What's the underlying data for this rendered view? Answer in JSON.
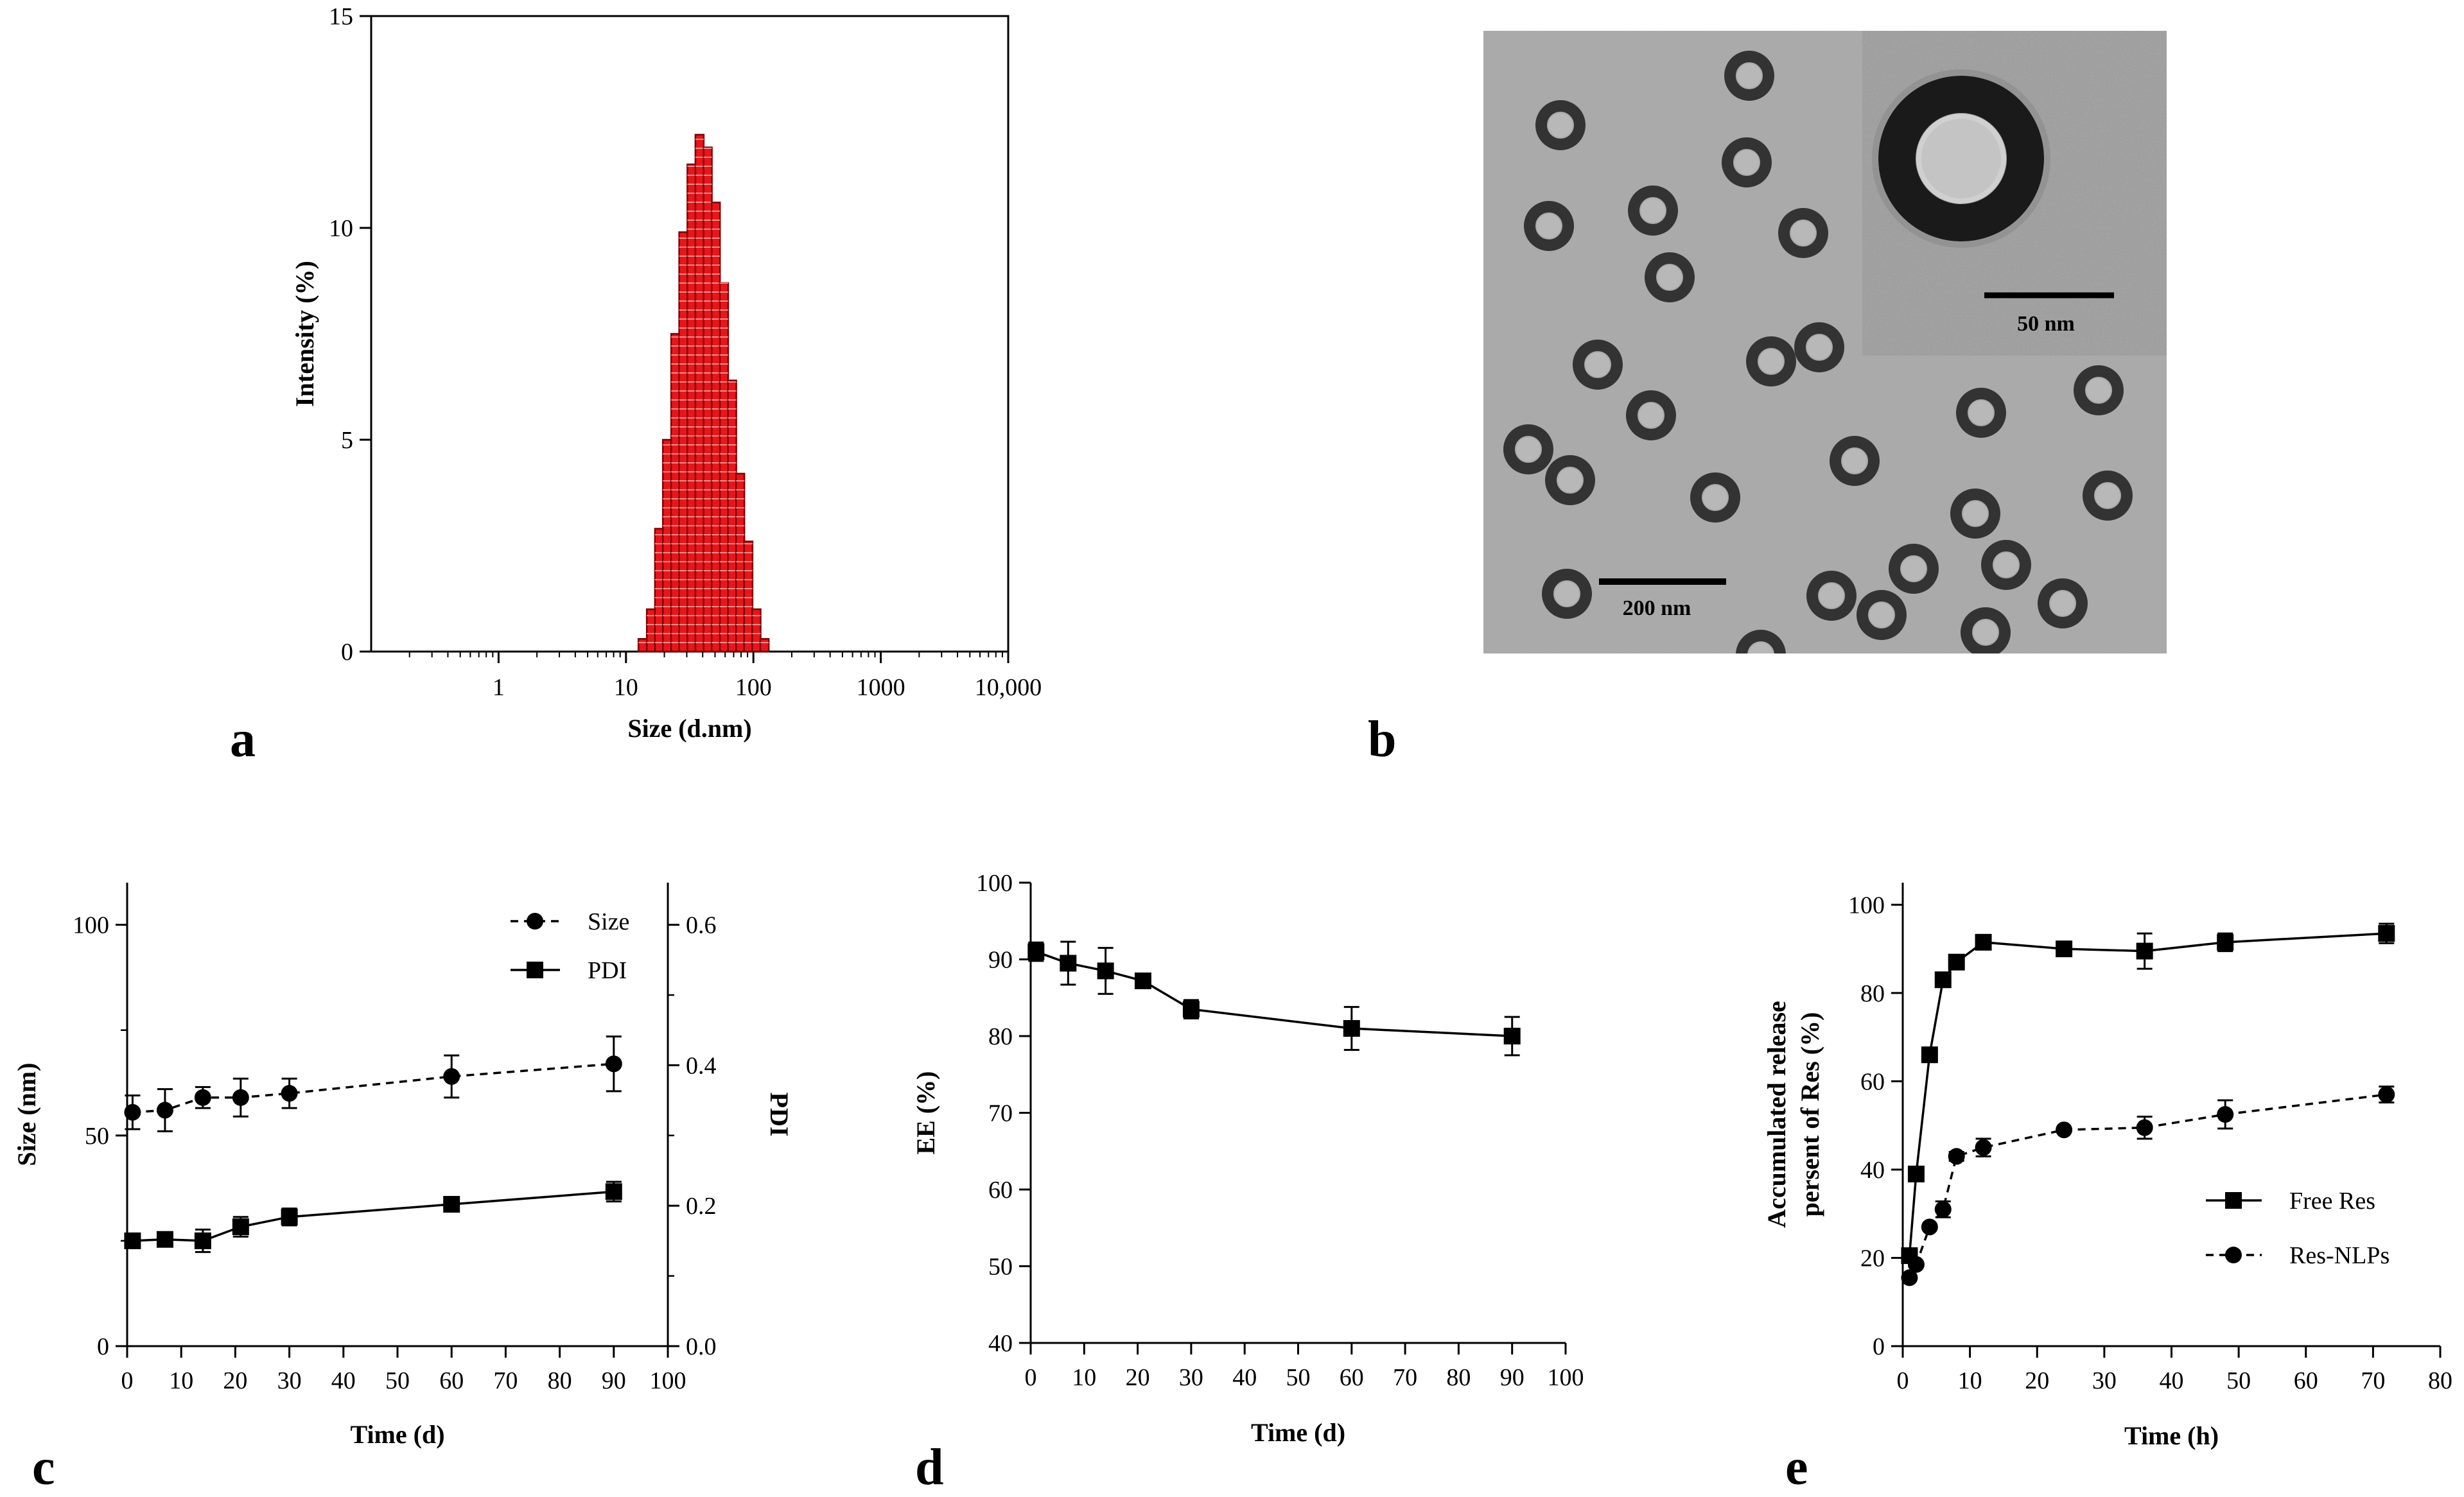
{
  "panels": {
    "a": "a",
    "b": "b",
    "c": "c",
    "d": "d",
    "e": "e"
  },
  "tem": {
    "scale_main": "200 nm",
    "scale_inset": "50 nm",
    "background_color": "#a9a9a9",
    "ring_color": "#333333"
  },
  "colors": {
    "bar_fill": "#e8161b",
    "bar_stroke": "#7a0000",
    "axis": "#000000"
  },
  "chart_data": [
    {
      "id": "a",
      "type": "bar",
      "xscale": "log",
      "xlim": [
        0.1,
        10000
      ],
      "ylim": [
        0,
        15
      ],
      "xticks": [
        1,
        10,
        100,
        1000,
        10000
      ],
      "xtick_labels": [
        "1",
        "10",
        "100",
        "1000",
        "10,000"
      ],
      "yticks": [
        0,
        5,
        10,
        15
      ],
      "ytick_labels": [
        "0",
        "5",
        "10",
        "15"
      ],
      "xlabel": "Size (d.nm)",
      "ylabel": "Intensity (%)",
      "x": [
        13.5,
        15.7,
        18.2,
        21.0,
        24.4,
        28.2,
        32.7,
        37.8,
        43.8,
        50.7,
        58.8,
        68.1,
        78.8,
        91.3,
        105.7,
        122.4
      ],
      "values": [
        0.3,
        1.0,
        2.9,
        5.0,
        7.5,
        9.9,
        11.5,
        12.2,
        11.9,
        10.6,
        8.7,
        6.4,
        4.2,
        2.6,
        1.0,
        0.3
      ]
    },
    {
      "id": "c",
      "type": "line",
      "xlim": [
        0,
        100
      ],
      "xticks": [
        0,
        10,
        20,
        30,
        40,
        50,
        60,
        70,
        80,
        90,
        100
      ],
      "xtick_labels": [
        "0",
        "10",
        "20",
        "30",
        "40",
        "50",
        "60",
        "70",
        "80",
        "90",
        "100"
      ],
      "xlabel": "Time (d)",
      "ylabel": "Size (nm)",
      "ylim": [
        0,
        110
      ],
      "yticks": [
        0,
        50,
        100
      ],
      "ytick_labels": [
        "0",
        "50",
        "100"
      ],
      "y2label": "PDI",
      "y2lim": [
        0,
        0.66
      ],
      "y2ticks": [
        0.0,
        0.2,
        0.4,
        0.6
      ],
      "y2tick_labels": [
        "0.0",
        "0.2",
        "0.4",
        "0.6"
      ],
      "legend": "top-right",
      "series": [
        {
          "name": "Size",
          "axis": "left",
          "marker": "circle",
          "dash": true,
          "x": [
            1,
            7,
            14,
            21,
            30,
            60,
            90
          ],
          "y": [
            55.5,
            56,
            59,
            59,
            60,
            64,
            67
          ],
          "err": [
            4,
            5,
            2.5,
            4.5,
            3.5,
            5,
            6.5
          ]
        },
        {
          "name": "PDI",
          "axis": "right",
          "marker": "square",
          "dash": false,
          "x": [
            1,
            7,
            14,
            21,
            30,
            60,
            90
          ],
          "y": [
            0.15,
            0.152,
            0.15,
            0.17,
            0.184,
            0.202,
            0.22
          ],
          "err": [
            0.006,
            0.007,
            0.016,
            0.014,
            0.012,
            0.01,
            0.014
          ]
        }
      ]
    },
    {
      "id": "d",
      "type": "line",
      "xlim": [
        0,
        100
      ],
      "xticks": [
        0,
        10,
        20,
        30,
        40,
        50,
        60,
        70,
        80,
        90,
        100
      ],
      "xtick_labels": [
        "0",
        "10",
        "20",
        "30",
        "40",
        "50",
        "60",
        "70",
        "80",
        "90",
        "100"
      ],
      "xlabel": "Time (d)",
      "ylabel": "EE (%)",
      "ylim": [
        40,
        100
      ],
      "yticks": [
        40,
        50,
        60,
        70,
        80,
        90,
        100
      ],
      "ytick_labels": [
        "40",
        "50",
        "60",
        "70",
        "80",
        "90",
        "100"
      ],
      "series": [
        {
          "marker": "square",
          "dash": false,
          "x": [
            1,
            7,
            14,
            21,
            30,
            60,
            90
          ],
          "y": [
            91,
            89.5,
            88.5,
            87.2,
            83.5,
            81,
            80
          ],
          "err": [
            1.2,
            2.8,
            3,
            0.8,
            1.2,
            2.8,
            2.5
          ]
        }
      ]
    },
    {
      "id": "e",
      "type": "line",
      "xlim": [
        0,
        80
      ],
      "xticks": [
        0,
        10,
        20,
        30,
        40,
        50,
        60,
        70,
        80
      ],
      "xtick_labels": [
        "0",
        "10",
        "20",
        "30",
        "40",
        "50",
        "60",
        "70",
        "80"
      ],
      "xlabel": "Time (h)",
      "ylabel": "Accumulated release",
      "ylabel2": "persent of Res (%)",
      "ylim": [
        0,
        105
      ],
      "yticks": [
        0,
        20,
        40,
        60,
        80,
        100
      ],
      "ytick_labels": [
        "0",
        "20",
        "40",
        "60",
        "80",
        "100"
      ],
      "legend": "bottom-right",
      "series": [
        {
          "name": "Free Res",
          "marker": "square",
          "dash": false,
          "x": [
            1,
            2,
            4,
            6,
            8,
            12,
            24,
            36,
            48,
            72
          ],
          "y": [
            20.5,
            39,
            66,
            83,
            87,
            91.5,
            90,
            89.5,
            91.5,
            93.5
          ],
          "err": [
            1,
            1,
            1,
            1,
            1,
            1,
            1,
            4,
            2,
            2.2
          ]
        },
        {
          "name": "Res-NLPs",
          "marker": "circle",
          "dash": true,
          "x": [
            1,
            2,
            4,
            6,
            8,
            12,
            24,
            36,
            48,
            72
          ],
          "y": [
            15.5,
            18.5,
            27,
            31,
            43,
            45,
            49,
            49.5,
            52.5,
            57
          ],
          "err": [
            0.5,
            0.5,
            0.5,
            1.8,
            1,
            2,
            0.5,
            2.5,
            3.2,
            1.8
          ]
        }
      ]
    }
  ]
}
